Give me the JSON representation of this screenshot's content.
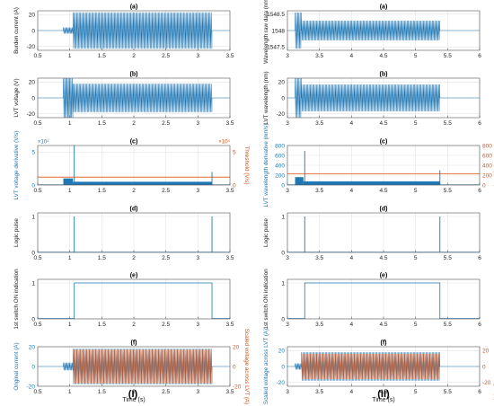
{
  "figure": {
    "column_labels": [
      "(I)",
      "(II)"
    ]
  },
  "colors": {
    "blue": "#1f77b4",
    "orange": "#d95319",
    "grid": "#e4e4e4",
    "axis": "#555555"
  },
  "chart_data": [
    {
      "id": "I-a",
      "panel": "(a)",
      "type": "line",
      "ylabel": "Burden current (A)",
      "xlim": [
        0.5,
        3.5
      ],
      "ylim": [
        -25,
        25
      ],
      "xticks": [
        "0.5",
        "1",
        "1.5",
        "2",
        "2.5",
        "3",
        "3.5"
      ],
      "yticks": [
        {
          "v": -20,
          "t": "-20"
        },
        {
          "v": 0,
          "t": "0"
        },
        {
          "v": 20,
          "t": "20"
        }
      ],
      "series": [
        {
          "kind": "osc",
          "color": "blue",
          "segments": [
            {
              "x": [
                0.5,
                0.9
              ],
              "amp": 0
            },
            {
              "x": [
                0.9,
                1.05
              ],
              "amp": 4
            },
            {
              "x": [
                1.05,
                3.22
              ],
              "amp": 23
            },
            {
              "x": [
                3.22,
                3.5
              ],
              "amp": 0
            }
          ]
        }
      ]
    },
    {
      "id": "I-b",
      "panel": "(b)",
      "type": "line",
      "ylabel": "LVT voltage (V)",
      "xlim": [
        0.5,
        3.5
      ],
      "ylim": [
        -25,
        25
      ],
      "xticks": [
        "0.5",
        "1",
        "1.5",
        "2",
        "2.5",
        "3",
        "3.5"
      ],
      "yticks": [
        {
          "v": -20,
          "t": "-20"
        },
        {
          "v": 0,
          "t": "0"
        },
        {
          "v": 20,
          "t": "20"
        }
      ],
      "series": [
        {
          "kind": "osc",
          "color": "blue",
          "segments": [
            {
              "x": [
                0.5,
                0.9
              ],
              "amp": 0
            },
            {
              "x": [
                0.9,
                1.05
              ],
              "amp": 28
            },
            {
              "x": [
                1.05,
                3.22
              ],
              "amp": 18
            },
            {
              "x": [
                3.22,
                3.5
              ],
              "amp": 0
            }
          ]
        }
      ]
    },
    {
      "id": "I-c",
      "panel": "(c)",
      "type": "line",
      "ylabel": "LVT voltage derivative (V/s)",
      "y2label": "Threshold (V/s)",
      "exp_left": "×10⁴",
      "exp_right": "×10⁴",
      "xlim": [
        0.5,
        3.5
      ],
      "ylim": [
        0,
        6
      ],
      "y2lim": [
        0,
        6
      ],
      "xticks": [
        "0.5",
        "1",
        "1.5",
        "2",
        "2.5",
        "3",
        "3.5"
      ],
      "yticks": [
        {
          "v": 0,
          "t": "0"
        },
        {
          "v": 5,
          "t": "5"
        }
      ],
      "y2ticks": [
        {
          "v": 0,
          "t": "0"
        },
        {
          "v": 5,
          "t": "5"
        }
      ],
      "series": [
        {
          "kind": "fill",
          "color": "blue",
          "segments": [
            {
              "x": [
                0.9,
                1.05
              ],
              "h": 1.0
            },
            {
              "x": [
                1.05,
                3.22
              ],
              "h": 0.5
            }
          ]
        },
        {
          "kind": "spike",
          "color": "blue",
          "x": [
            1.07,
            3.22
          ],
          "h": [
            6,
            2
          ]
        },
        {
          "kind": "hline",
          "color": "orange",
          "y": 1.2,
          "axis": "right"
        }
      ]
    },
    {
      "id": "I-d",
      "panel": "(d)",
      "type": "line",
      "ylabel": "Logic pulse",
      "xlim": [
        0.5,
        3.5
      ],
      "ylim": [
        0,
        1.1
      ],
      "xticks": [
        "0.5",
        "1",
        "1.5",
        "2",
        "2.5",
        "3",
        "3.5"
      ],
      "yticks": [
        {
          "v": 0,
          "t": "0"
        },
        {
          "v": 1,
          "t": "1"
        }
      ],
      "series": [
        {
          "kind": "spike",
          "color": "blue",
          "x": [
            1.07,
            3.22
          ],
          "h": [
            1,
            1
          ]
        }
      ]
    },
    {
      "id": "I-e",
      "panel": "(e)",
      "type": "line",
      "ylabel": "1st switch ON indication",
      "xlim": [
        0.5,
        3.5
      ],
      "ylim": [
        0,
        1.1
      ],
      "xticks": [
        "0.5",
        "1",
        "1.5",
        "2",
        "2.5",
        "3",
        "3.5"
      ],
      "yticks": [
        {
          "v": 0,
          "t": "0"
        },
        {
          "v": 1,
          "t": "1"
        }
      ],
      "series": [
        {
          "kind": "step",
          "color": "blue",
          "x": [
            1.07,
            3.22
          ],
          "h": 1
        }
      ]
    },
    {
      "id": "I-f",
      "panel": "(f)",
      "type": "line",
      "ylabel": "Original current (A)",
      "y2label": "Scaled voltage across LVT (A)",
      "xlabel": "Time (s)",
      "xlim": [
        0.5,
        3.5
      ],
      "ylim": [
        -20,
        20
      ],
      "y2lim": [
        -20,
        20
      ],
      "xticks": [
        "0.5",
        "1",
        "1.5",
        "2",
        "2.5",
        "3",
        "3.5"
      ],
      "yticks": [
        {
          "v": -20,
          "t": "-20"
        },
        {
          "v": 0,
          "t": "0"
        },
        {
          "v": 20,
          "t": "20"
        }
      ],
      "y2ticks": [
        {
          "v": -20,
          "t": "-20"
        },
        {
          "v": 0,
          "t": "0"
        },
        {
          "v": 20,
          "t": "20"
        }
      ],
      "series": [
        {
          "kind": "osc",
          "color": "blue",
          "segments": [
            {
              "x": [
                0.5,
                0.9
              ],
              "amp": 0
            },
            {
              "x": [
                0.9,
                1.05
              ],
              "amp": 4
            },
            {
              "x": [
                1.05,
                3.22
              ],
              "amp": 18
            },
            {
              "x": [
                3.22,
                3.5
              ],
              "amp": 0
            }
          ]
        },
        {
          "kind": "osc",
          "color": "orange",
          "segments": [
            {
              "x": [
                1.05,
                3.22
              ],
              "amp": 17
            }
          ]
        }
      ]
    },
    {
      "id": "II-a",
      "panel": "(a)",
      "type": "line",
      "ylabel": "Wavelength raw data (nm)",
      "xlim": [
        3,
        6
      ],
      "ylim": [
        1547.4,
        1548.6
      ],
      "xticks": [
        "3",
        "3.5",
        "4",
        "4.5",
        "5",
        "5.5",
        "6"
      ],
      "yticks": [
        {
          "v": 1547.5,
          "t": "1547.5"
        },
        {
          "v": 1548,
          "t": "1548"
        },
        {
          "v": 1548.5,
          "t": "1548.5"
        }
      ],
      "series": [
        {
          "kind": "osc",
          "color": "blue",
          "base": 1548,
          "segments": [
            {
              "x": [
                3,
                3.12
              ],
              "amp": 0
            },
            {
              "x": [
                3.12,
                3.22
              ],
              "amp": 0.55
            },
            {
              "x": [
                3.22,
                5.38
              ],
              "amp": 0.3
            },
            {
              "x": [
                5.38,
                6
              ],
              "amp": 0
            }
          ]
        }
      ]
    },
    {
      "id": "II-b",
      "panel": "(b)",
      "type": "line",
      "ylabel": "LVT wavelength (nm)",
      "xlim": [
        3,
        6
      ],
      "ylim": [
        -25,
        25
      ],
      "xticks": [
        "3",
        "3.5",
        "4",
        "4.5",
        "5",
        "5.5",
        "6"
      ],
      "yticks": [
        {
          "v": -20,
          "t": "-20"
        },
        {
          "v": 0,
          "t": "0"
        },
        {
          "v": 20,
          "t": "20"
        }
      ],
      "series": [
        {
          "kind": "osc",
          "color": "blue",
          "segments": [
            {
              "x": [
                3,
                3.12
              ],
              "amp": 0
            },
            {
              "x": [
                3.12,
                3.22
              ],
              "amp": 25
            },
            {
              "x": [
                3.22,
                5.38
              ],
              "amp": 17
            },
            {
              "x": [
                5.38,
                6
              ],
              "amp": 0
            }
          ]
        }
      ]
    },
    {
      "id": "II-c",
      "panel": "(c)",
      "type": "line",
      "ylabel": "LVT wavelength derivative (nm/s)",
      "y2label": "Threshold (nm/s)",
      "xlim": [
        3,
        6
      ],
      "ylim": [
        0,
        800
      ],
      "y2lim": [
        0,
        800
      ],
      "xticks": [
        "3",
        "3.5",
        "4",
        "4.5",
        "5",
        "5.5",
        "6"
      ],
      "yticks": [
        {
          "v": 0,
          "t": "0"
        },
        {
          "v": 200,
          "t": "200"
        },
        {
          "v": 400,
          "t": "400"
        },
        {
          "v": 600,
          "t": "600"
        },
        {
          "v": 800,
          "t": "800"
        }
      ],
      "y2ticks": [
        {
          "v": 0,
          "t": "0"
        },
        {
          "v": 200,
          "t": "200"
        },
        {
          "v": 400,
          "t": "400"
        },
        {
          "v": 600,
          "t": "600"
        },
        {
          "v": 800,
          "t": "800"
        }
      ],
      "series": [
        {
          "kind": "fill",
          "color": "blue",
          "segments": [
            {
              "x": [
                3.12,
                3.25
              ],
              "h": 160
            },
            {
              "x": [
                3.25,
                5.38
              ],
              "h": 75
            }
          ]
        },
        {
          "kind": "spike",
          "color": "blue",
          "x": [
            3.27,
            5.38
          ],
          "h": [
            690,
            300
          ]
        },
        {
          "kind": "hline",
          "color": "orange",
          "y": 230,
          "axis": "right"
        }
      ]
    },
    {
      "id": "II-d",
      "panel": "(d)",
      "type": "line",
      "ylabel": "Logic pulse",
      "xlim": [
        3,
        6
      ],
      "ylim": [
        0,
        1.1
      ],
      "xticks": [
        "3",
        "3.5",
        "4",
        "4.5",
        "5",
        "5.5",
        "6"
      ],
      "yticks": [
        {
          "v": 0,
          "t": "0"
        },
        {
          "v": 1,
          "t": "1"
        }
      ],
      "series": [
        {
          "kind": "spike",
          "color": "blue",
          "x": [
            3.27,
            5.38
          ],
          "h": [
            1,
            1
          ]
        }
      ]
    },
    {
      "id": "II-e",
      "panel": "(e)",
      "type": "line",
      "ylabel": "1st switch ON indication",
      "xlim": [
        3,
        6
      ],
      "ylim": [
        0,
        1.1
      ],
      "xticks": [
        "3",
        "3.5",
        "4",
        "4.5",
        "5",
        "5.5",
        "6"
      ],
      "yticks": [
        {
          "v": 0,
          "t": "0"
        },
        {
          "v": 1,
          "t": "1"
        }
      ],
      "series": [
        {
          "kind": "step",
          "color": "blue",
          "x": [
            3.27,
            5.38
          ],
          "h": 1
        }
      ]
    },
    {
      "id": "II-f",
      "panel": "(f)",
      "type": "line",
      "ylabel": "Scaled voltage across LVT (A)",
      "y2label": "Scaled LVT wavelength (A)",
      "xlabel": "Time (s)",
      "xlim": [
        3,
        6
      ],
      "ylim": [
        -25,
        25
      ],
      "y2lim": [
        -25,
        25
      ],
      "xticks": [
        "3",
        "3.5",
        "4",
        "4.5",
        "5",
        "5.5",
        "6"
      ],
      "yticks": [
        {
          "v": -20,
          "t": "-20"
        },
        {
          "v": 0,
          "t": "0"
        },
        {
          "v": 20,
          "t": "20"
        }
      ],
      "y2ticks": [
        {
          "v": -20,
          "t": "-20"
        },
        {
          "v": 0,
          "t": "0"
        },
        {
          "v": 20,
          "t": "20"
        }
      ],
      "series": [
        {
          "kind": "osc",
          "color": "blue",
          "segments": [
            {
              "x": [
                3,
                3.12
              ],
              "amp": 0
            },
            {
              "x": [
                3.12,
                3.22
              ],
              "amp": 4
            },
            {
              "x": [
                3.22,
                5.38
              ],
              "amp": 18
            },
            {
              "x": [
                5.38,
                6
              ],
              "amp": 0
            }
          ]
        },
        {
          "kind": "osc",
          "color": "orange",
          "segments": [
            {
              "x": [
                3.22,
                5.38
              ],
              "amp": 16
            }
          ]
        }
      ]
    }
  ]
}
